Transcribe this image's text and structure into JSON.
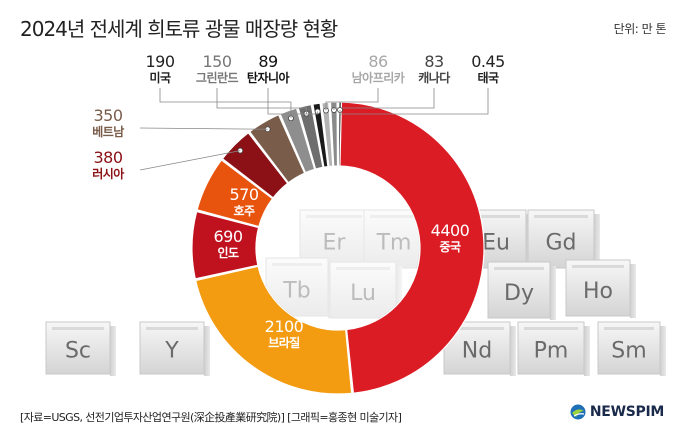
{
  "title": "2024년 전세계 희토류 광물 매장량 현황",
  "unit": "단위: 만 톤",
  "chart_data": {
    "type": "pie",
    "title": "2024년 전세계 희토류 광물 매장량 현황",
    "unit": "단위: 만 톤",
    "categories": [
      "중국",
      "브라질",
      "인도",
      "호주",
      "러시아",
      "베트남",
      "미국",
      "그린란드",
      "탄자니아",
      "남아프리카",
      "캐나다",
      "태국"
    ],
    "values": [
      4400,
      2100,
      690,
      570,
      380,
      350,
      190,
      150,
      89,
      86,
      83,
      0.45
    ],
    "value_labels": [
      "4400",
      "2100",
      "690",
      "570",
      "380",
      "350",
      "190",
      "150",
      "89",
      "86",
      "83",
      "0.45"
    ],
    "colors": [
      "#db1c24",
      "#f39c12",
      "#c0111f",
      "#e8530e",
      "#8b1116",
      "#7a5c4a",
      "#8e8e8e",
      "#6e6e6e",
      "#1a1a1a",
      "#b3b3b3",
      "#8a8a8a",
      "#3a3a3a"
    ]
  },
  "elements": [
    "Sc",
    "Y",
    "Er",
    "Tm",
    "Eu",
    "Gd",
    "Tb",
    "Lu",
    "Dy",
    "Ho",
    "Nd",
    "Pm",
    "Sm"
  ],
  "source": "[자료=USGS, 선전기업투자산업연구원(深企投產業研究院)] [그래픽=홍종현 미술기자]",
  "logo": "NEWSPIM"
}
